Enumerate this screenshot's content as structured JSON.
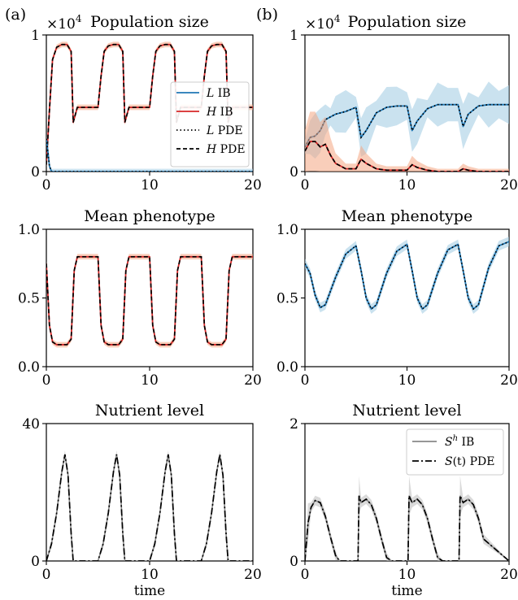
{
  "panel_labels": [
    "(a)",
    "(b)"
  ],
  "xlabel": "time",
  "sci_prefix": "×10",
  "sci_exponent": "4",
  "legend_pop": [
    {
      "label_italic": "L",
      "label": " IB"
    },
    {
      "label_italic": "H",
      "label": " IB"
    },
    {
      "label_italic": "L",
      "label": " PDE"
    },
    {
      "label_italic": "H",
      "label": " PDE"
    }
  ],
  "legend_nut": [
    {
      "label_italic": "S",
      "label_sup": "h",
      "label": " IB"
    },
    {
      "label_italic": "S",
      "label": "(t) PDE"
    }
  ],
  "colors": {
    "L": "#1f77b4",
    "H": "#d62728",
    "L_band": "#9ecae1",
    "H_band": "#f4a582",
    "S_band": "#bbbbbb"
  },
  "chart_data": [
    {
      "panel": "(a)",
      "type": "line",
      "title": "Population size",
      "xlabel": "",
      "ylabel": "",
      "xlim": [
        0,
        20
      ],
      "ylim": [
        0,
        1
      ],
      "xticks": [
        "0",
        "10",
        "20"
      ],
      "yticks": [
        "0",
        "1"
      ],
      "y_scale_note": "×10^4",
      "legend_position": "center-right",
      "series": [
        {
          "name": "H IB",
          "x": [
            0,
            0.3,
            0.6,
            1,
            1.5,
            2,
            2.4,
            2.6,
            3,
            4,
            5,
            5.3,
            5.6,
            6,
            6.5,
            7,
            7.4,
            7.6,
            8,
            9,
            10,
            10.3,
            10.6,
            11,
            11.5,
            12,
            12.4,
            12.6,
            13,
            14,
            15,
            15.3,
            15.6,
            16,
            16.5,
            17,
            17.4,
            17.6,
            18,
            19,
            20
          ],
          "y": [
            0.05,
            0.45,
            0.82,
            0.91,
            0.93,
            0.93,
            0.88,
            0.36,
            0.47,
            0.47,
            0.47,
            0.7,
            0.88,
            0.92,
            0.93,
            0.93,
            0.88,
            0.36,
            0.47,
            0.47,
            0.47,
            0.7,
            0.88,
            0.92,
            0.93,
            0.93,
            0.88,
            0.36,
            0.47,
            0.47,
            0.47,
            0.7,
            0.88,
            0.92,
            0.93,
            0.93,
            0.88,
            0.36,
            0.47,
            0.47,
            0.47
          ]
        },
        {
          "name": "L IB",
          "x": [
            0,
            0.1,
            0.3,
            0.5,
            20
          ],
          "y": [
            0.24,
            0.18,
            0.04,
            0.0,
            0.0
          ]
        }
      ]
    },
    {
      "panel": "(b)",
      "type": "line",
      "title": "Population size",
      "xlabel": "",
      "ylabel": "",
      "xlim": [
        0,
        20
      ],
      "ylim": [
        0,
        1
      ],
      "xticks": [
        "0",
        "10",
        "20"
      ],
      "yticks": [
        "0",
        "1"
      ],
      "y_scale_note": "×10^4",
      "series": [
        {
          "name": "L IB",
          "x": [
            0,
            0.5,
            1,
            1.5,
            2,
            2.5,
            3,
            4,
            5,
            5.5,
            6,
            7,
            8,
            9,
            10,
            10.5,
            11,
            12,
            13,
            14,
            15,
            15.5,
            16,
            17,
            18,
            19,
            20
          ],
          "y": [
            0.18,
            0.25,
            0.26,
            0.3,
            0.38,
            0.4,
            0.42,
            0.44,
            0.47,
            0.25,
            0.3,
            0.43,
            0.47,
            0.48,
            0.48,
            0.3,
            0.37,
            0.46,
            0.49,
            0.49,
            0.49,
            0.33,
            0.42,
            0.48,
            0.49,
            0.49,
            0.49
          ]
        },
        {
          "name": "H IB",
          "x": [
            0,
            0.5,
            1,
            1.5,
            2,
            2.5,
            3,
            4,
            5,
            5.5,
            6,
            7,
            8,
            9,
            10,
            10.5,
            11,
            12,
            13,
            14,
            15,
            15.5,
            16,
            17,
            18,
            19,
            20
          ],
          "y": [
            0.15,
            0.22,
            0.22,
            0.18,
            0.2,
            0.12,
            0.06,
            0.02,
            0.02,
            0.09,
            0.06,
            0.02,
            0.01,
            0.01,
            0.01,
            0.05,
            0.03,
            0.01,
            0.0,
            0.0,
            0.0,
            0.02,
            0.01,
            0.0,
            0.0,
            0.0,
            0.0
          ]
        }
      ]
    },
    {
      "panel": "(a)",
      "type": "line",
      "title": "Mean phenotype",
      "xlabel": "",
      "ylabel": "",
      "xlim": [
        0,
        20
      ],
      "ylim": [
        0,
        1
      ],
      "xticks": [
        "0",
        "10",
        "20"
      ],
      "yticks": [
        "0.0",
        "0.5",
        "1.0"
      ],
      "series": [
        {
          "name": "H IB",
          "x": [
            0,
            0.3,
            0.6,
            1,
            2,
            2.4,
            2.7,
            3,
            4,
            5,
            5.3,
            5.6,
            6,
            7,
            7.4,
            7.7,
            8,
            9,
            10,
            10.3,
            10.6,
            11,
            12,
            12.4,
            12.7,
            13,
            14,
            15,
            15.3,
            15.6,
            16,
            17,
            17.4,
            17.7,
            18,
            19,
            20
          ],
          "y": [
            0.75,
            0.3,
            0.18,
            0.16,
            0.16,
            0.2,
            0.7,
            0.8,
            0.8,
            0.8,
            0.3,
            0.18,
            0.16,
            0.16,
            0.2,
            0.7,
            0.8,
            0.8,
            0.8,
            0.3,
            0.18,
            0.16,
            0.16,
            0.2,
            0.7,
            0.8,
            0.8,
            0.8,
            0.3,
            0.18,
            0.16,
            0.16,
            0.2,
            0.7,
            0.8,
            0.8,
            0.8
          ]
        }
      ]
    },
    {
      "panel": "(b)",
      "type": "line",
      "title": "Mean phenotype",
      "xlabel": "",
      "ylabel": "",
      "xlim": [
        0,
        20
      ],
      "ylim": [
        0,
        1
      ],
      "xticks": [
        "0",
        "10",
        "20"
      ],
      "yticks": [
        "0.0",
        "0.5",
        "1.0"
      ],
      "series": [
        {
          "name": "L IB",
          "x": [
            0,
            0.5,
            1,
            1.5,
            2,
            3,
            4,
            5,
            5.5,
            6,
            6.5,
            7,
            8,
            9,
            10,
            10.5,
            11,
            11.5,
            12,
            13,
            14,
            15,
            15.5,
            16,
            16.5,
            17,
            18,
            19,
            20
          ],
          "y": [
            0.75,
            0.68,
            0.52,
            0.43,
            0.45,
            0.65,
            0.82,
            0.88,
            0.7,
            0.5,
            0.42,
            0.45,
            0.68,
            0.84,
            0.89,
            0.7,
            0.5,
            0.42,
            0.45,
            0.68,
            0.85,
            0.89,
            0.7,
            0.5,
            0.42,
            0.45,
            0.72,
            0.88,
            0.91
          ]
        }
      ]
    },
    {
      "panel": "(a)",
      "type": "line",
      "title": "Nutrient level",
      "xlabel": "time",
      "ylabel": "",
      "xlim": [
        0,
        20
      ],
      "ylim": [
        0,
        40
      ],
      "xticks": [
        "0",
        "10",
        "20"
      ],
      "yticks": [
        "0",
        "40"
      ],
      "series": [
        {
          "name": "S(t) PDE",
          "x": [
            0,
            0.5,
            1,
            1.5,
            1.8,
            2.1,
            2.4,
            2.6,
            5,
            5.5,
            6,
            6.5,
            6.8,
            7.1,
            7.4,
            7.6,
            10,
            10.5,
            11,
            11.5,
            11.8,
            12.1,
            12.4,
            12.6,
            15,
            15.5,
            16,
            16.5,
            16.8,
            17.1,
            17.4,
            17.6,
            20
          ],
          "y": [
            0,
            5,
            14,
            26,
            31,
            25,
            8,
            0,
            0,
            5,
            14,
            26,
            31,
            25,
            8,
            0,
            0,
            5,
            14,
            26,
            31,
            25,
            8,
            0,
            0,
            5,
            14,
            26,
            31,
            25,
            8,
            0,
            0
          ]
        }
      ]
    },
    {
      "panel": "(b)",
      "type": "line",
      "title": "Nutrient level",
      "xlabel": "time",
      "ylabel": "",
      "xlim": [
        0,
        20
      ],
      "ylim": [
        0,
        2
      ],
      "xticks": [
        "0",
        "10",
        "20"
      ],
      "yticks": [
        "0",
        "2"
      ],
      "series": [
        {
          "name": "S(t) PDE",
          "x": [
            0,
            0.3,
            0.6,
            1,
            1.5,
            2,
            2.5,
            3,
            3.4,
            5.2,
            5.3,
            5.5,
            6,
            6.5,
            7,
            7.5,
            8,
            8.5,
            10.1,
            10.2,
            10.5,
            11,
            11.5,
            12,
            12.5,
            13,
            13.5,
            15.1,
            15.2,
            15.5,
            16,
            16.5,
            17,
            17.5,
            20
          ],
          "y": [
            0,
            0.55,
            0.78,
            0.88,
            0.85,
            0.65,
            0.35,
            0.08,
            0,
            0,
            0.95,
            0.85,
            0.9,
            0.82,
            0.62,
            0.32,
            0.05,
            0,
            0,
            0.95,
            0.85,
            0.9,
            0.82,
            0.62,
            0.32,
            0.05,
            0,
            0,
            0.95,
            0.85,
            0.9,
            0.82,
            0.62,
            0.32,
            0
          ]
        }
      ]
    }
  ]
}
